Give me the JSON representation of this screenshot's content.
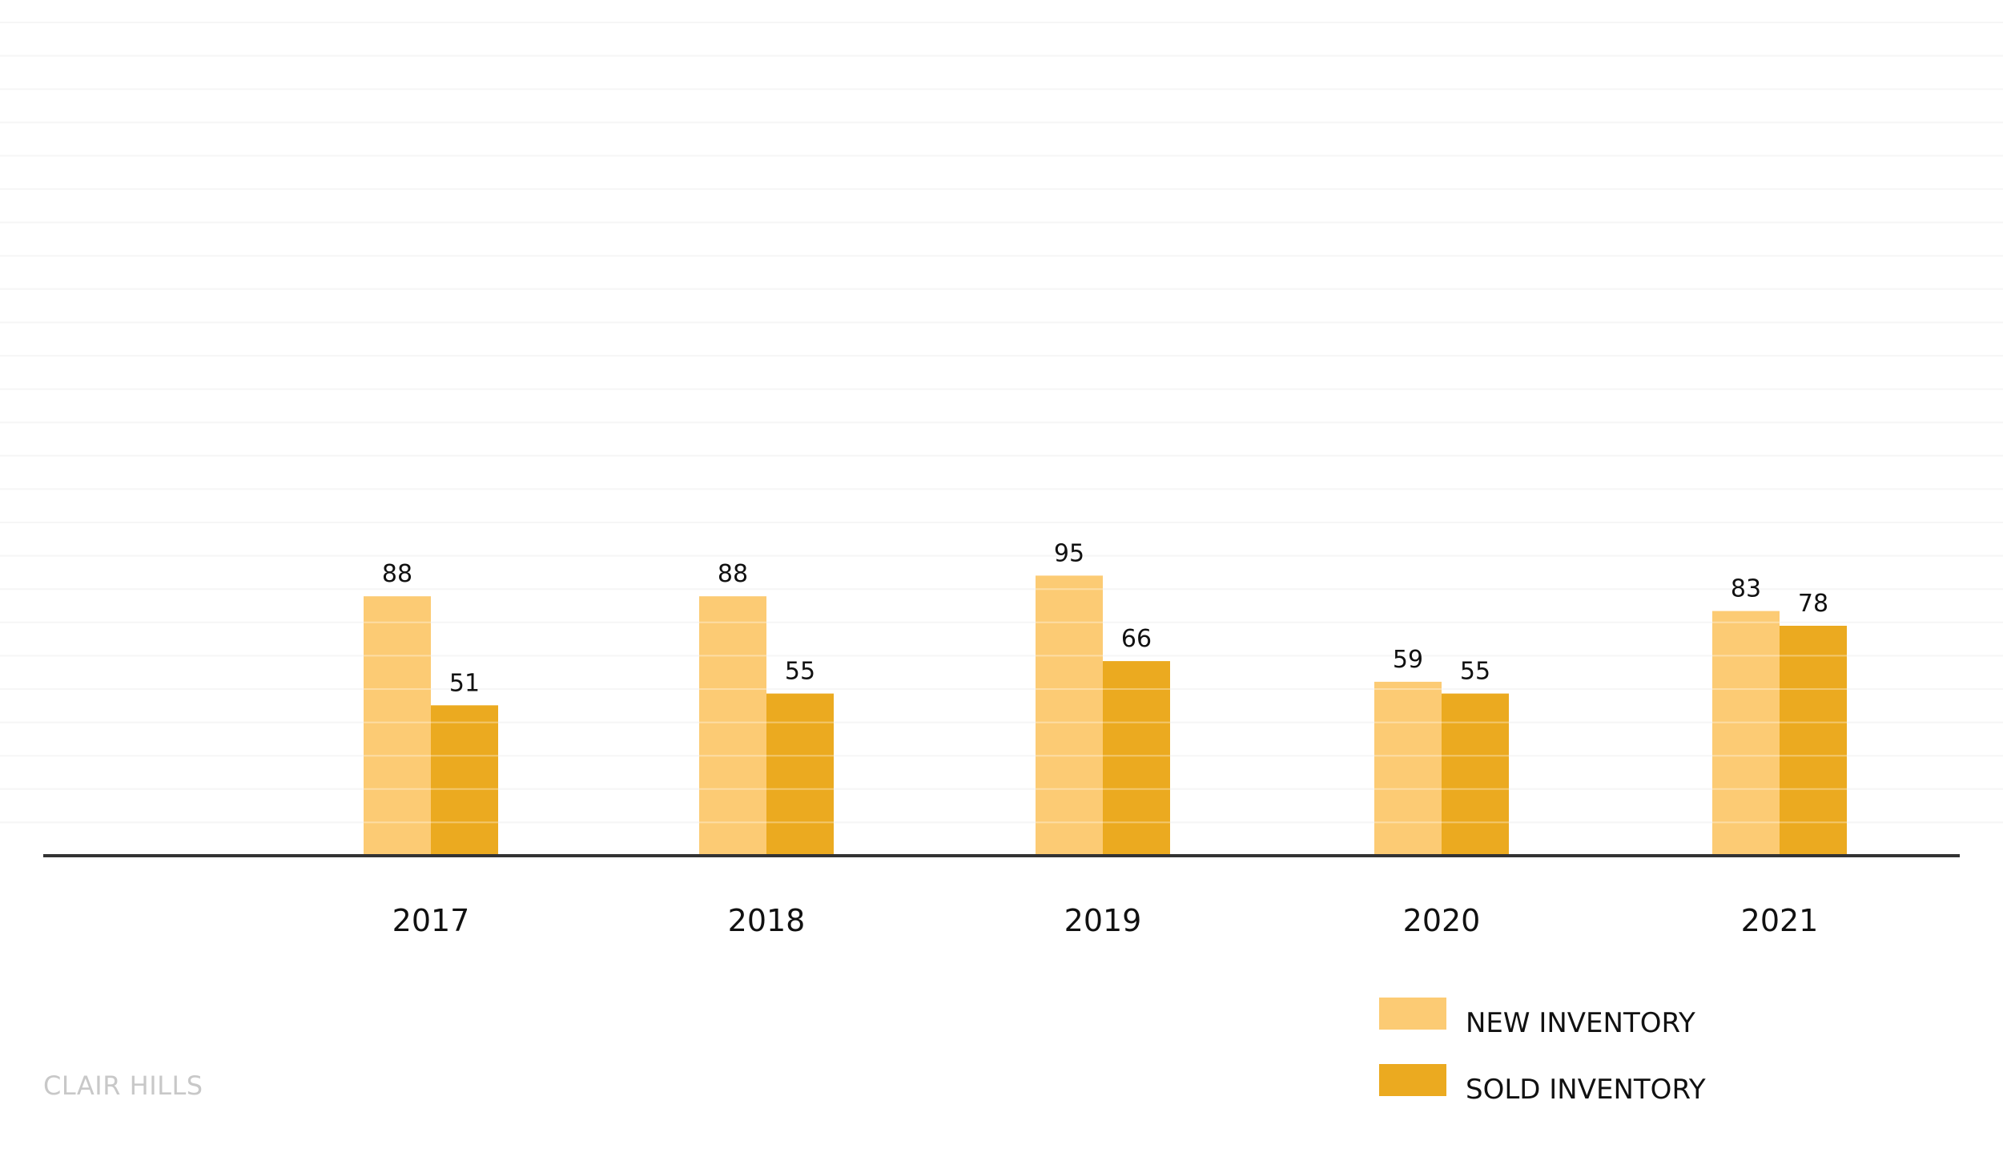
{
  "colors": {
    "new_inventory": "#FCCB74",
    "sold_inventory": "#EBAA20",
    "gridline": "#F2F2F2",
    "axis": "#333333",
    "watermark": "#C8C8C8"
  },
  "watermark": "CLAIR HILLS",
  "chart_data": {
    "type": "bar",
    "categories": [
      "2017",
      "2018",
      "2019",
      "2020",
      "2021"
    ],
    "series": [
      {
        "name": "NEW INVENTORY",
        "values": [
          88,
          88,
          95,
          59,
          83
        ]
      },
      {
        "name": "SOLD INVENTORY",
        "values": [
          51,
          55,
          66,
          55,
          78
        ]
      }
    ],
    "title": "",
    "xlabel": "",
    "ylabel": "",
    "ylim": [
      0,
      250
    ],
    "grid": true,
    "legend_position": "bottom-right"
  }
}
